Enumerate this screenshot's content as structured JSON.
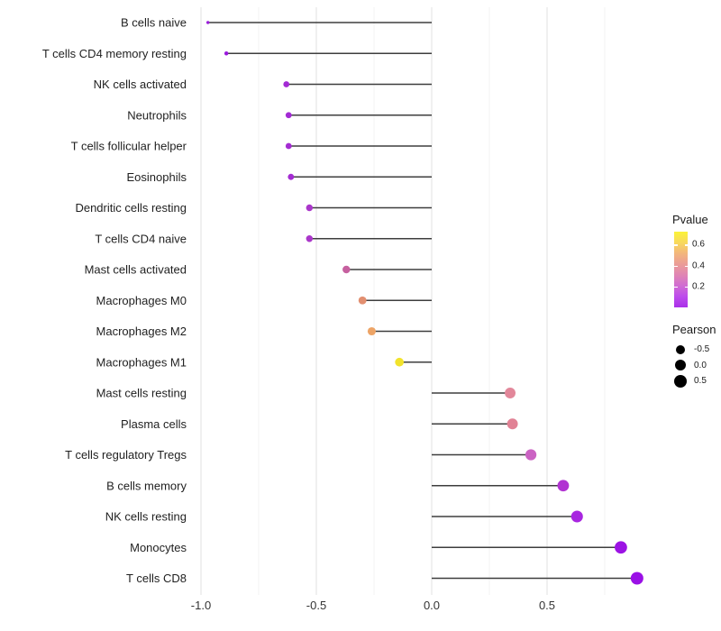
{
  "chart_data": {
    "type": "lollipop",
    "title": "",
    "xlabel": "",
    "ylabel": "",
    "orientation": "horizontal",
    "baseline_x": 0.0,
    "x_axis": {
      "major_ticks": [
        -1.0,
        -0.5,
        0.0,
        0.5
      ],
      "tick_labels": [
        "-1.0",
        "-0.5",
        "0.0",
        "0.5"
      ],
      "minor_ticks": [
        -0.75,
        -0.25,
        0.25,
        0.75
      ],
      "range": [
        -1.06,
        1.0
      ],
      "grid": true
    },
    "size_scale": {
      "domain": [
        -0.97,
        0.89
      ],
      "r_range": [
        1.7,
        7.0
      ]
    },
    "points": [
      {
        "label": "B cells naive",
        "pearson": -0.97,
        "pvalue_est": 0.05,
        "color": "#9b1ddb"
      },
      {
        "label": "T cells CD4 memory resting",
        "pearson": -0.89,
        "pvalue_est": 0.05,
        "color": "#9a19dd"
      },
      {
        "label": "NK cells activated",
        "pearson": -0.63,
        "pvalue_est": 0.09,
        "color": "#a32ad4"
      },
      {
        "label": "Neutrophils",
        "pearson": -0.62,
        "pvalue_est": 0.09,
        "color": "#a32ad4"
      },
      {
        "label": "T cells follicular helper",
        "pearson": -0.62,
        "pvalue_est": 0.09,
        "color": "#a42cd2"
      },
      {
        "label": "Eosinophils",
        "pearson": -0.61,
        "pvalue_est": 0.1,
        "color": "#a42cd2"
      },
      {
        "label": "Dendritic cells resting",
        "pearson": -0.53,
        "pvalue_est": 0.12,
        "color": "#aa36ca"
      },
      {
        "label": "T cells CD4 naive",
        "pearson": -0.53,
        "pvalue_est": 0.12,
        "color": "#aa36ca"
      },
      {
        "label": "Mast cells activated",
        "pearson": -0.37,
        "pvalue_est": 0.22,
        "color": "#c6609f"
      },
      {
        "label": "Macrophages M0",
        "pearson": -0.3,
        "pvalue_est": 0.42,
        "color": "#e28f70"
      },
      {
        "label": "Macrophages M2",
        "pearson": -0.26,
        "pvalue_est": 0.47,
        "color": "#eda466"
      },
      {
        "label": "Macrophages M1",
        "pearson": -0.14,
        "pvalue_est": 0.67,
        "color": "#f2e32c"
      },
      {
        "label": "Mast cells resting",
        "pearson": 0.34,
        "pvalue_est": 0.3,
        "color": "#e2879a"
      },
      {
        "label": "Plasma cells",
        "pearson": 0.35,
        "pvalue_est": 0.3,
        "color": "#e18295"
      },
      {
        "label": "T cells regulatory  Tregs",
        "pearson": 0.43,
        "pvalue_est": 0.2,
        "color": "#cb63c3"
      },
      {
        "label": "B cells memory",
        "pearson": 0.57,
        "pvalue_est": 0.12,
        "color": "#b133d2"
      },
      {
        "label": "NK cells resting",
        "pearson": 0.63,
        "pvalue_est": 0.1,
        "color": "#a826e0"
      },
      {
        "label": "Monocytes",
        "pearson": 0.82,
        "pvalue_est": 0.03,
        "color": "#9c13e4"
      },
      {
        "label": "T cells CD8",
        "pearson": 0.89,
        "pvalue_est": 0.03,
        "color": "#9a10e6"
      }
    ]
  },
  "legend": {
    "pvalue": {
      "title": "Pvalue",
      "gradient_top_to_bottom": [
        "#fbf338",
        "#f8d95c",
        "#f3b67c",
        "#eb9d97",
        "#e085b4",
        "#d06cd2",
        "#bd4cec",
        "#aa30e9"
      ],
      "ticks": [
        {
          "label": "0.6",
          "pct": 16.7
        },
        {
          "label": "0.4",
          "pct": 45.2
        },
        {
          "label": "0.2",
          "pct": 72.6
        }
      ]
    },
    "pearson": {
      "title": "Pearson",
      "dot_color": "#000000",
      "items": [
        {
          "label": "-0.5",
          "size": 10
        },
        {
          "label": "0.0",
          "size": 12
        },
        {
          "label": "0.5",
          "size": 14
        }
      ]
    }
  },
  "colors": {
    "background": "#ffffff",
    "segment": "#3e3e3e",
    "grid_major": "#e7e7e7",
    "grid_minor": "#f3f3f3",
    "axis_text": "#333333",
    "label_text": "#1f1f1f"
  }
}
